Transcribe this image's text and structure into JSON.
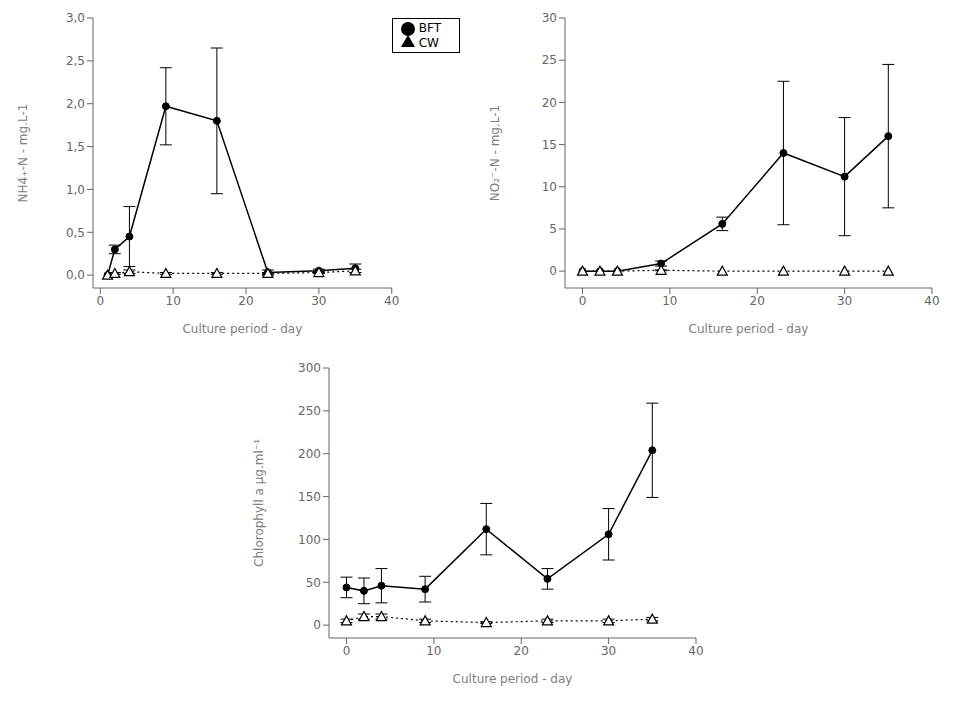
{
  "chart_data": [
    {
      "type": "line",
      "x": [
        1,
        2,
        4,
        9,
        16,
        23,
        30,
        35
      ],
      "series": [
        {
          "name": "BFT",
          "color": "#000000",
          "marker": "circle",
          "line_style": "solid",
          "values": [
            0.0,
            0.3,
            0.45,
            1.97,
            1.8,
            0.03,
            0.05,
            0.08
          ],
          "yerr": [
            0.0,
            0.05,
            0.35,
            0.45,
            0.85,
            0.03,
            0.02,
            0.05
          ]
        },
        {
          "name": "CW",
          "color": "#000000",
          "marker": "triangle",
          "line_style": "dotted",
          "values": [
            0.0,
            0.02,
            0.04,
            0.02,
            0.02,
            0.02,
            0.03,
            0.05
          ],
          "yerr": [
            0.0,
            0.01,
            0.02,
            0.01,
            0.01,
            0.01,
            0.01,
            0.02
          ]
        }
      ],
      "xlabel": "Culture period - day",
      "ylabel": "NH4₊-N - mg.L-1",
      "xlim": [
        -1,
        40
      ],
      "xticks": [
        0,
        10,
        20,
        30,
        40
      ],
      "ylim": [
        -0.15,
        3.0
      ],
      "yticks": [
        {
          "value": 0.0,
          "label": "0,0"
        },
        {
          "value": 0.5,
          "label": "0,5"
        },
        {
          "value": 1.0,
          "label": "1,0"
        },
        {
          "value": 1.5,
          "label": "1,5"
        },
        {
          "value": 2.0,
          "label": "2,0"
        },
        {
          "value": 2.5,
          "label": "2,5"
        },
        {
          "value": 3.0,
          "label": "3,0"
        }
      ],
      "legend": "upper right",
      "grid": false
    },
    {
      "type": "line",
      "x": [
        0,
        2,
        4,
        9,
        16,
        23,
        30,
        35
      ],
      "series": [
        {
          "color": "#000000",
          "marker": "circle",
          "line_style": "solid",
          "values": [
            0.0,
            0.0,
            0.0,
            0.9,
            5.6,
            14.0,
            11.2,
            16.0
          ],
          "yerr": [
            0.0,
            0.0,
            0.0,
            0.3,
            0.8,
            8.5,
            7.0,
            8.5
          ]
        },
        {
          "color": "#000000",
          "marker": "triangle",
          "line_style": "dotted",
          "values": [
            0.0,
            0.0,
            0.0,
            0.1,
            0.0,
            0.0,
            0.0,
            0.0
          ],
          "yerr": [
            0.0,
            0.0,
            0.0,
            0.05,
            0.0,
            0.0,
            0.0,
            0.0
          ]
        }
      ],
      "xlabel": "Culture period - day",
      "ylabel": "NO₂⁻-N - mg.L-1",
      "xlim": [
        -2,
        40
      ],
      "xticks": [
        0,
        10,
        20,
        30,
        40
      ],
      "ylim": [
        -2,
        30
      ],
      "yticks": [
        0,
        5,
        10,
        15,
        20,
        25,
        30
      ],
      "grid": false
    },
    {
      "type": "line",
      "x": [
        0,
        2,
        4,
        9,
        16,
        23,
        30,
        35
      ],
      "series": [
        {
          "color": "#000000",
          "marker": "circle",
          "line_style": "solid",
          "values": [
            44.0,
            40.0,
            46.0,
            42.0,
            112.0,
            54.0,
            106.0,
            204.0
          ],
          "yerr": [
            12.0,
            15.0,
            20.0,
            15.0,
            30.0,
            12.0,
            30.0,
            55.0
          ]
        },
        {
          "color": "#000000",
          "marker": "triangle",
          "line_style": "dotted",
          "values": [
            5.0,
            10.0,
            10.0,
            5.0,
            3.0,
            5.0,
            5.0,
            7.0
          ],
          "yerr": [
            2.0,
            3.0,
            3.0,
            2.0,
            1.0,
            2.0,
            2.0,
            2.0
          ]
        }
      ],
      "xlabel": "Culture period - day",
      "ylabel": "Chlorophyll a μg.ml⁻¹",
      "xlim": [
        -2,
        40
      ],
      "xticks": [
        0,
        10,
        20,
        30,
        40
      ],
      "ylim": [
        -15,
        300
      ],
      "yticks": [
        0,
        50,
        100,
        150,
        200,
        250,
        300
      ],
      "grid": false
    }
  ]
}
